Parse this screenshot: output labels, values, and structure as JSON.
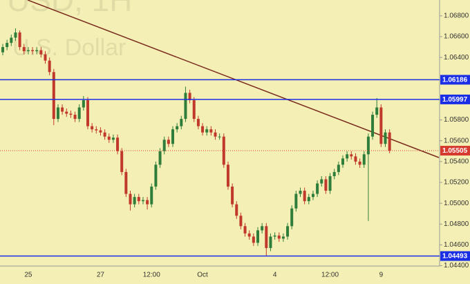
{
  "chart_data": {
    "type": "candlestick",
    "watermark": [
      "USD, 1H",
      "U.S. Dollar"
    ],
    "categories": [
      null,
      null,
      null,
      null,
      null,
      null,
      "25",
      null,
      null,
      null,
      null,
      null,
      null,
      null,
      null,
      null,
      null,
      null,
      null,
      null,
      null,
      null,
      null,
      "27",
      null,
      null,
      null,
      null,
      null,
      null,
      null,
      null,
      null,
      null,
      null,
      "12:00",
      null,
      null,
      null,
      null,
      null,
      null,
      null,
      null,
      null,
      null,
      null,
      "Oct",
      null,
      null,
      null,
      null,
      null,
      null,
      null,
      null,
      null,
      null,
      null,
      null,
      null,
      null,
      null,
      null,
      "4",
      null,
      null,
      null,
      null,
      null,
      null,
      null,
      null,
      null,
      null,
      null,
      null,
      "12:00",
      null,
      null,
      null,
      null,
      null,
      null,
      null,
      null,
      null,
      null,
      null,
      "9",
      null,
      null
    ],
    "open": [
      1.0645,
      1.065,
      1.0654,
      1.0659,
      1.0664,
      1.065,
      1.0646,
      1.0647,
      1.0646,
      1.0647,
      1.0643,
      1.0637,
      1.0626,
      1.0581,
      1.0592,
      1.0588,
      1.0586,
      1.0585,
      1.0581,
      1.0592,
      1.0599,
      1.0574,
      1.0571,
      1.057,
      1.0568,
      1.0564,
      1.0561,
      1.0563,
      1.055,
      1.053,
      1.0509,
      1.0499,
      1.0506,
      1.0502,
      1.0503,
      1.0499,
      1.0516,
      1.0537,
      1.055,
      1.0561,
      1.0557,
      1.0571,
      1.0574,
      1.0581,
      1.0606,
      1.0599,
      1.0581,
      1.0574,
      1.0568,
      1.0571,
      1.0568,
      1.0564,
      1.0564,
      1.0537,
      1.0516,
      1.0499,
      1.0488,
      1.0478,
      1.0471,
      1.0468,
      1.0462,
      1.0474,
      1.0478,
      1.0457,
      1.0468,
      1.0469,
      1.0466,
      1.0468,
      1.0478,
      1.0495,
      1.0509,
      1.0512,
      1.0502,
      1.0506,
      1.0509,
      1.0519,
      1.0523,
      1.0512,
      1.0526,
      1.053,
      1.0537,
      1.0543,
      1.0547,
      1.0545,
      1.054,
      1.0537,
      1.0547,
      1.0564,
      1.0585,
      1.0592,
      1.0557,
      1.0568
    ],
    "high": [
      1.0653,
      1.0657,
      1.0662,
      1.0668,
      1.0666,
      1.0653,
      1.065,
      1.065,
      1.065,
      1.065,
      1.0646,
      1.064,
      1.0629,
      1.0595,
      1.0595,
      1.0591,
      1.0589,
      1.0588,
      1.0595,
      1.0603,
      1.0602,
      1.0577,
      1.0574,
      1.0573,
      1.0571,
      1.0567,
      1.0566,
      1.0566,
      1.0553,
      1.0533,
      1.0512,
      1.0509,
      1.0509,
      1.0506,
      1.0506,
      1.0519,
      1.054,
      1.0553,
      1.0564,
      1.0564,
      1.0574,
      1.0577,
      1.0584,
      1.0612,
      1.0609,
      1.0602,
      1.0584,
      1.0577,
      1.0574,
      1.0574,
      1.0571,
      1.0567,
      1.0567,
      1.054,
      1.0519,
      1.0502,
      1.0491,
      1.0481,
      1.0474,
      1.0471,
      1.0477,
      1.0481,
      1.0481,
      1.0471,
      1.0472,
      1.0472,
      1.0471,
      1.0481,
      1.0498,
      1.0512,
      1.0515,
      1.0515,
      1.0509,
      1.0512,
      1.0522,
      1.0526,
      1.0526,
      1.0529,
      1.0533,
      1.054,
      1.0546,
      1.055,
      1.055,
      1.0548,
      1.0543,
      1.055,
      1.0567,
      1.0588,
      1.0601,
      1.0595,
      1.0571,
      1.0571
    ],
    "low": [
      1.0642,
      1.0647,
      1.0651,
      1.0656,
      1.0647,
      1.0643,
      1.0643,
      1.0643,
      1.0643,
      1.064,
      1.0634,
      1.0623,
      1.0575,
      1.0578,
      1.0585,
      1.0583,
      1.0582,
      1.0578,
      1.0578,
      1.0589,
      1.0571,
      1.0568,
      1.0567,
      1.0565,
      1.0561,
      1.0558,
      1.0558,
      1.0547,
      1.0527,
      1.0506,
      1.0493,
      1.0496,
      1.0499,
      1.0499,
      1.0494,
      1.0496,
      1.0513,
      1.0534,
      1.0547,
      1.0554,
      1.0554,
      1.0568,
      1.0571,
      1.0578,
      1.0596,
      1.0578,
      1.0571,
      1.0565,
      1.0565,
      1.0565,
      1.0561,
      1.0561,
      1.0534,
      1.0513,
      1.0496,
      1.0485,
      1.0475,
      1.0468,
      1.0465,
      1.0459,
      1.0459,
      1.0471,
      1.0449,
      1.0454,
      1.0465,
      1.0463,
      1.0463,
      1.0465,
      1.0475,
      1.0492,
      1.0506,
      1.0499,
      1.0499,
      1.0503,
      1.0506,
      1.0516,
      1.0509,
      1.0509,
      1.0523,
      1.0527,
      1.0534,
      1.054,
      1.0542,
      1.0537,
      1.0534,
      1.0534,
      1.0483,
      1.0561,
      1.0582,
      1.0554,
      1.0554,
      1.0548
    ],
    "close": [
      1.065,
      1.0654,
      1.0659,
      1.0664,
      1.065,
      1.0646,
      1.0647,
      1.0646,
      1.0647,
      1.0643,
      1.0637,
      1.0626,
      1.0581,
      1.0592,
      1.0588,
      1.0586,
      1.0585,
      1.0581,
      1.0592,
      1.0599,
      1.0574,
      1.0571,
      1.057,
      1.0568,
      1.0564,
      1.0561,
      1.0563,
      1.055,
      1.053,
      1.0509,
      1.0499,
      1.0506,
      1.0502,
      1.0503,
      1.0499,
      1.0516,
      1.0537,
      1.055,
      1.0561,
      1.0557,
      1.0571,
      1.0574,
      1.0581,
      1.0606,
      1.0599,
      1.0581,
      1.0574,
      1.0568,
      1.0571,
      1.0568,
      1.0564,
      1.0564,
      1.0537,
      1.0516,
      1.0499,
      1.0488,
      1.0478,
      1.0471,
      1.0468,
      1.0462,
      1.0474,
      1.0478,
      1.0457,
      1.0468,
      1.0469,
      1.0466,
      1.0468,
      1.0478,
      1.0495,
      1.0509,
      1.0512,
      1.0502,
      1.0506,
      1.0509,
      1.0519,
      1.0523,
      1.0512,
      1.0526,
      1.053,
      1.0537,
      1.0543,
      1.0547,
      1.0545,
      1.054,
      1.0537,
      1.0547,
      1.0564,
      1.0585,
      1.0592,
      1.0557,
      1.0568,
      1.05505
    ],
    "up_color": "#2f7d3a",
    "down_color": "#c0392b",
    "ylim": [
      1.04397,
      1.06952
    ],
    "yticks": [
      {
        "value": 1.044,
        "label": "1.04400"
      },
      {
        "value": 1.046,
        "label": "1.04600"
      },
      {
        "value": 1.048,
        "label": "1.04800"
      },
      {
        "value": 1.05,
        "label": "1.05000"
      },
      {
        "value": 1.052,
        "label": "1.05200"
      },
      {
        "value": 1.054,
        "label": "1.05400"
      },
      {
        "value": 1.056,
        "label": "1.05600"
      },
      {
        "value": 1.058,
        "label": "1.05800"
      },
      {
        "value": 1.064,
        "label": "1.06400"
      },
      {
        "value": 1.066,
        "label": "1.06600"
      },
      {
        "value": 1.068,
        "label": "1.06800"
      }
    ],
    "levels": [
      {
        "value": 1.06186,
        "label": "1.06186",
        "color": "#1a2ee6",
        "style": "solid"
      },
      {
        "value": 1.05997,
        "label": "1.05997",
        "color": "#1a2ee6",
        "style": "solid"
      },
      {
        "value": 1.05505,
        "label": "1.05505",
        "color": "#d63a2e",
        "style": "dotted"
      },
      {
        "value": 1.04493,
        "label": "1.04493",
        "color": "#1a2ee6",
        "style": "solid"
      }
    ]
  }
}
